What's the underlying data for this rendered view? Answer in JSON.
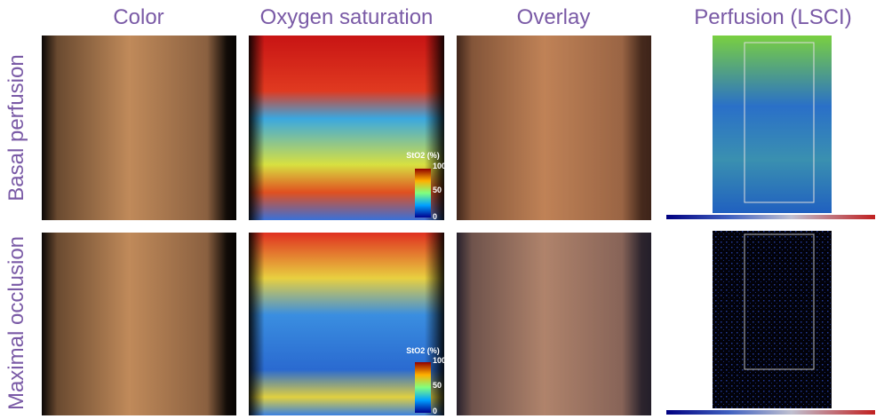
{
  "columns": [
    "Color",
    "Oxygen saturation",
    "Overlay",
    "Perfusion (LSCI)"
  ],
  "rows": [
    "Basal perfusion",
    "Maximal occlusion"
  ],
  "colorbar": {
    "title": "StO2 (%)",
    "ticks": [
      "100",
      "50",
      "0"
    ]
  }
}
